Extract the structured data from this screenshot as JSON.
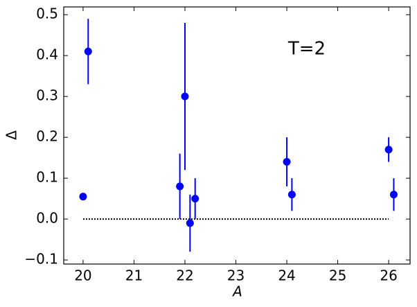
{
  "chart_data": {
    "type": "errorbar-scatter",
    "annotation": "T=2",
    "x_label": "A",
    "y_label": "Δ",
    "series": [
      {
        "color": "#0000ff",
        "x": [
          20.0,
          20.1,
          21.9,
          22.0,
          22.1,
          22.2,
          24.0,
          24.1,
          26.0,
          26.1
        ],
        "values": [
          0.055,
          0.41,
          0.08,
          0.3,
          -0.01,
          0.05,
          0.14,
          0.06,
          0.17,
          0.06
        ],
        "errors": [
          0,
          0.08,
          0.08,
          0.18,
          0.07,
          0.05,
          0.06,
          0.04,
          0.03,
          0.04
        ]
      }
    ],
    "hline": {
      "y": 0,
      "x": [
        20,
        26
      ],
      "color": "#000000"
    },
    "xlim": [
      19.62,
      26.42
    ],
    "ylim": [
      -0.11,
      0.519
    ],
    "xticks": [
      20,
      21,
      22,
      23,
      24,
      25,
      26
    ],
    "yticks": [
      {
        "value": -0.1,
        "label": "−0.1"
      },
      {
        "value": 0,
        "label": "0.0"
      },
      0.1,
      0.2,
      0.3,
      0.4,
      0.5
    ],
    "grid": false
  }
}
